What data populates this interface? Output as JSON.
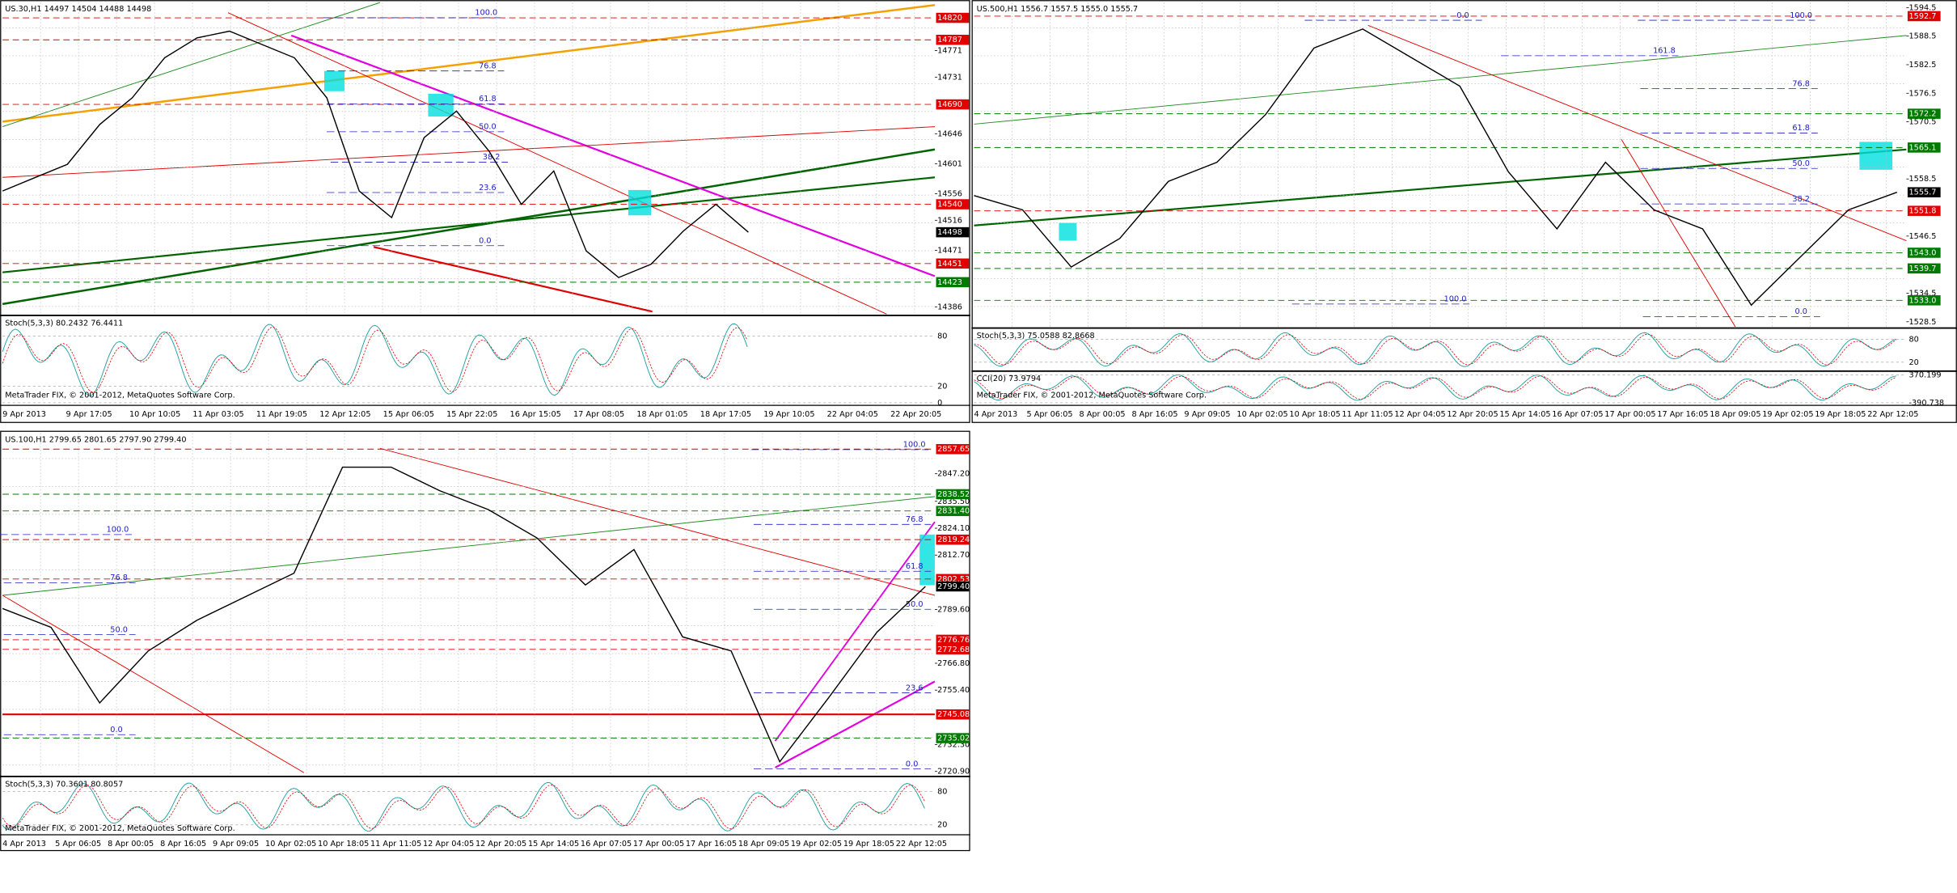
{
  "panels": [
    {
      "header": "US.30,H1  14497 14504 14488 14498",
      "ylim": [
        14375,
        14843
      ],
      "price_ticks": [
        14771,
        14731,
        14646,
        14601,
        14556,
        14516,
        14471,
        14386
      ],
      "price_marks": [
        {
          "value": 14820,
          "label": "14820",
          "color": "#e00000"
        },
        {
          "value": 14787,
          "label": "14787",
          "color": "#e00000"
        },
        {
          "value": 14690,
          "label": "14690",
          "color": "#e00000"
        },
        {
          "value": 14540,
          "label": "14540",
          "color": "#e00000"
        },
        {
          "value": 14498,
          "label": "14498",
          "color": "#000000"
        },
        {
          "value": 14451,
          "label": "14451",
          "color": "#e00000"
        },
        {
          "value": 14423,
          "label": "14423",
          "color": "#007a00"
        }
      ],
      "closes": [
        14560,
        14580,
        14600,
        14660,
        14700,
        14760,
        14790,
        14800,
        14780,
        14760,
        14700,
        14560,
        14520,
        14640,
        14680,
        14620,
        14540,
        14590,
        14470,
        14430,
        14450,
        14500,
        14540,
        14498
      ],
      "fib_labels": [
        "100.0",
        "76.8",
        "61.8",
        "50.0",
        "38.2",
        "23.6",
        "0.0"
      ],
      "indicators": [
        {
          "header": "Stoch(5,3,3) 80.2432 76.4411",
          "ylim": [
            0,
            100
          ],
          "ticks": [
            80,
            20,
            0
          ]
        }
      ],
      "dates": [
        "9 Apr 2013",
        "9 Apr 17:05",
        "10 Apr 10:05",
        "11 Apr 03:05",
        "11 Apr 19:05",
        "12 Apr 12:05",
        "15 Apr 06:05",
        "15 Apr 22:05",
        "16 Apr 15:05",
        "17 Apr 08:05",
        "18 Apr 01:05",
        "18 Apr 17:05",
        "19 Apr 10:05",
        "22 Apr 04:05",
        "22 Apr 20:05"
      ],
      "watermark": "MetaTrader FIX, © 2001-2012, MetaQuotes Software Corp."
    },
    {
      "header": "US.500,H1  1556.7 1557.5 1555.0 1555.7",
      "ylim": [
        1527.44,
        1595.56
      ],
      "price_ticks": [
        1594.5,
        1588.5,
        1582.5,
        1576.5,
        1570.5,
        1558.5,
        1546.5,
        1534.5,
        1528.5
      ],
      "price_marks": [
        {
          "value": 1592.7,
          "label": "1592.7",
          "color": "#e00000"
        },
        {
          "value": 1572.2,
          "label": "1572.2",
          "color": "#007a00"
        },
        {
          "value": 1565.1,
          "label": "1565.1",
          "color": "#007a00"
        },
        {
          "value": 1555.7,
          "label": "1555.7",
          "color": "#000000"
        },
        {
          "value": 1551.8,
          "label": "1551.8",
          "color": "#e00000"
        },
        {
          "value": 1543,
          "label": "1543.0",
          "color": "#007a00"
        },
        {
          "value": 1539.7,
          "label": "1539.7",
          "color": "#007a00"
        },
        {
          "value": 1533,
          "label": "1533.0",
          "color": "#007a00"
        }
      ],
      "closes": [
        1555,
        1552,
        1540,
        1546,
        1558,
        1562,
        1572,
        1586,
        1590,
        1584,
        1578,
        1560,
        1548,
        1562,
        1552,
        1548,
        1532,
        1542,
        1552,
        1555.7
      ],
      "fib_labels": [
        "0.0",
        "100.0",
        "161.8",
        "76.8",
        "61.8",
        "50.0",
        "38.2",
        "100.0",
        "0.0"
      ],
      "indicators": [
        {
          "header": "Stoch(5,3,3) 75.0588 82.8668",
          "ylim": [
            0,
            100
          ],
          "ticks": [
            80,
            20
          ]
        },
        {
          "header": "CCI(20) 73.9794",
          "ylim": [
            -390.738,
            370.199
          ],
          "ticks": [
            {
              "value": 370.199,
              "label": "370.199"
            },
            {
              "value": -390.738,
              "label": "-390.738"
            }
          ]
        }
      ],
      "dates": [
        "4 Apr 2013",
        "5 Apr 06:05",
        "8 Apr 00:05",
        "8 Apr 16:05",
        "9 Apr 09:05",
        "10 Apr 02:05",
        "10 Apr 18:05",
        "11 Apr 11:05",
        "12 Apr 04:05",
        "12 Apr 20:05",
        "15 Apr 14:05",
        "16 Apr 07:05",
        "17 Apr 00:05",
        "17 Apr 16:05",
        "18 Apr 09:05",
        "19 Apr 02:05",
        "19 Apr 18:05",
        "22 Apr 12:05"
      ],
      "watermark": "MetaTrader FIX, © 2001-2012, MetaQuotes Software Corp."
    },
    {
      "header": "US.100,H1  2799.65 2801.65 2797.90 2799.40",
      "ylim": [
        2719.3,
        2864.4
      ],
      "price_ticks": [
        {
          "value": 2847.2,
          "label": "2847.20"
        },
        {
          "value": 2835.5,
          "label": "2835.50"
        },
        {
          "value": 2824.1,
          "label": "2824.10"
        },
        {
          "value": 2812.7,
          "label": "2812.70"
        },
        {
          "value": 2789.6,
          "label": "2789.60"
        },
        {
          "value": 2766.8,
          "label": "2766.80"
        },
        {
          "value": 2755.4,
          "label": "2755.40"
        },
        {
          "value": 2732.3,
          "label": "2732.30"
        },
        {
          "value": 2720.9,
          "label": "2720.90"
        }
      ],
      "price_marks": [
        {
          "value": 2857.65,
          "label": "2857.65",
          "color": "#e00000"
        },
        {
          "value": 2838.52,
          "label": "2838.52",
          "color": "#007a00"
        },
        {
          "value": 2831.4,
          "label": "2831.40",
          "color": "#007a00"
        },
        {
          "value": 2819.24,
          "label": "2819.24",
          "color": "#e00000"
        },
        {
          "value": 2802.53,
          "label": "2802.53",
          "color": "#e00000"
        },
        {
          "value": 2799.4,
          "label": "2799.40",
          "color": "#000000"
        },
        {
          "value": 2776.76,
          "label": "2776.76",
          "color": "#e00000"
        },
        {
          "value": 2772.68,
          "label": "2772.68",
          "color": "#e00000"
        },
        {
          "value": 2745.08,
          "label": "2745.08",
          "color": "#e00000"
        },
        {
          "value": 2735.02,
          "label": "2735.02",
          "color": "#007a00"
        }
      ],
      "closes": [
        2790,
        2782,
        2750,
        2772,
        2785,
        2795,
        2805,
        2850,
        2850,
        2840,
        2832,
        2820,
        2800,
        2815,
        2778,
        2772,
        2725,
        2752,
        2780,
        2799.4
      ],
      "fib_labels": [
        "100.0",
        "76.8",
        "61.8",
        "50.0",
        "23.6",
        "0.0",
        "100.0",
        "76.8",
        "50.0",
        "0.0"
      ],
      "indicators": [
        {
          "header": "Stoch(5,3,3) 70.3601 80.8057",
          "ylim": [
            0,
            100
          ],
          "ticks": [
            80,
            20
          ]
        }
      ],
      "dates": [
        "4 Apr 2013",
        "5 Apr 06:05",
        "8 Apr 00:05",
        "8 Apr 16:05",
        "9 Apr 09:05",
        "10 Apr 02:05",
        "10 Apr 18:05",
        "11 Apr 11:05",
        "12 Apr 04:05",
        "12 Apr 20:05",
        "15 Apr 14:05",
        "16 Apr 07:05",
        "17 Apr 00:05",
        "17 Apr 16:05",
        "18 Apr 09:05",
        "19 Apr 02:05",
        "19 Apr 18:05",
        "22 Apr 12:05"
      ],
      "watermark": "MetaTrader FIX, © 2001-2012, MetaQuotes Software Corp."
    }
  ]
}
